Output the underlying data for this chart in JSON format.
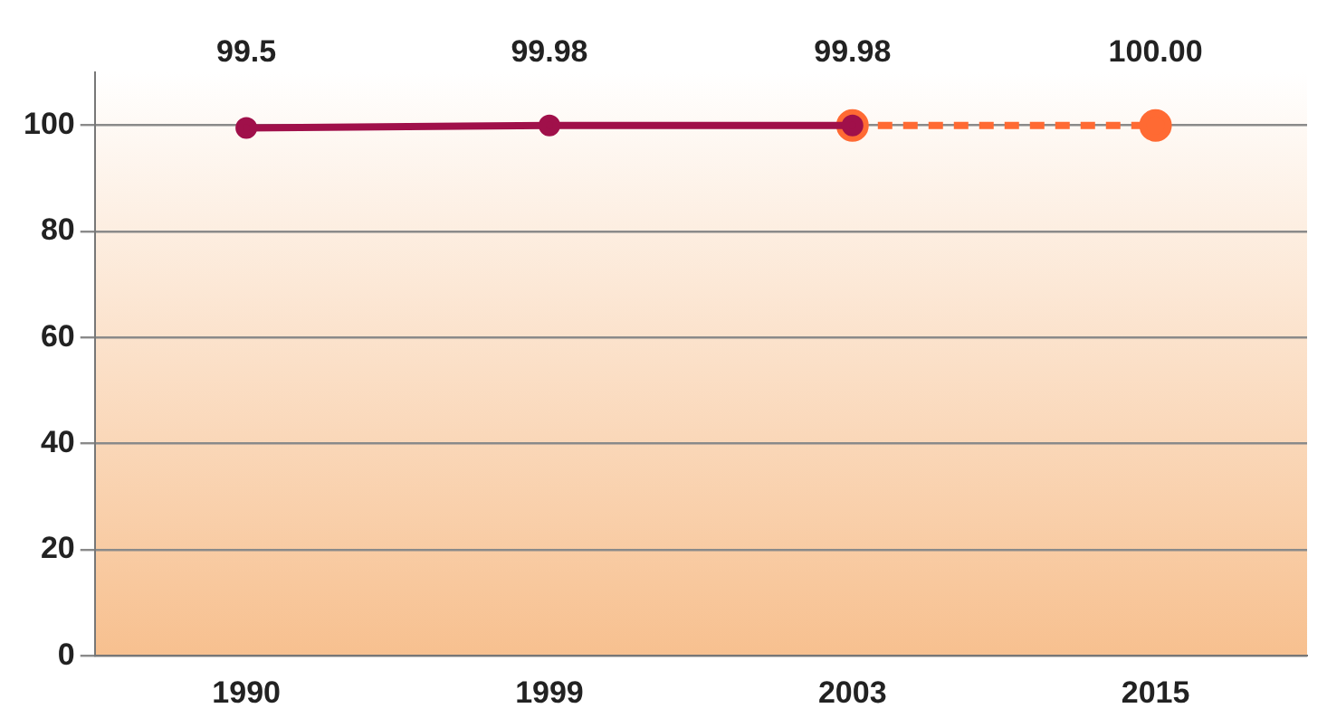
{
  "chart_data": {
    "type": "line",
    "categories": [
      "1990",
      "1999",
      "2003",
      "2015"
    ],
    "series": [
      {
        "color": "#a0104a",
        "values": [
          99.5,
          99.98,
          99.98,
          null
        ],
        "value_labels": [
          "99.5",
          "99.98",
          "99.98",
          null
        ],
        "line_style": "solid"
      },
      {
        "color": "#ff6a33",
        "values": [
          null,
          null,
          99.98,
          100.0
        ],
        "value_labels": [
          null,
          null,
          null,
          "100.00"
        ],
        "line_style": "dashed"
      }
    ],
    "ylim": [
      0,
      110
    ],
    "yticks": [
      0,
      20,
      40,
      60,
      80,
      100
    ],
    "grid": "y",
    "legend": false,
    "marker": "circle"
  }
}
